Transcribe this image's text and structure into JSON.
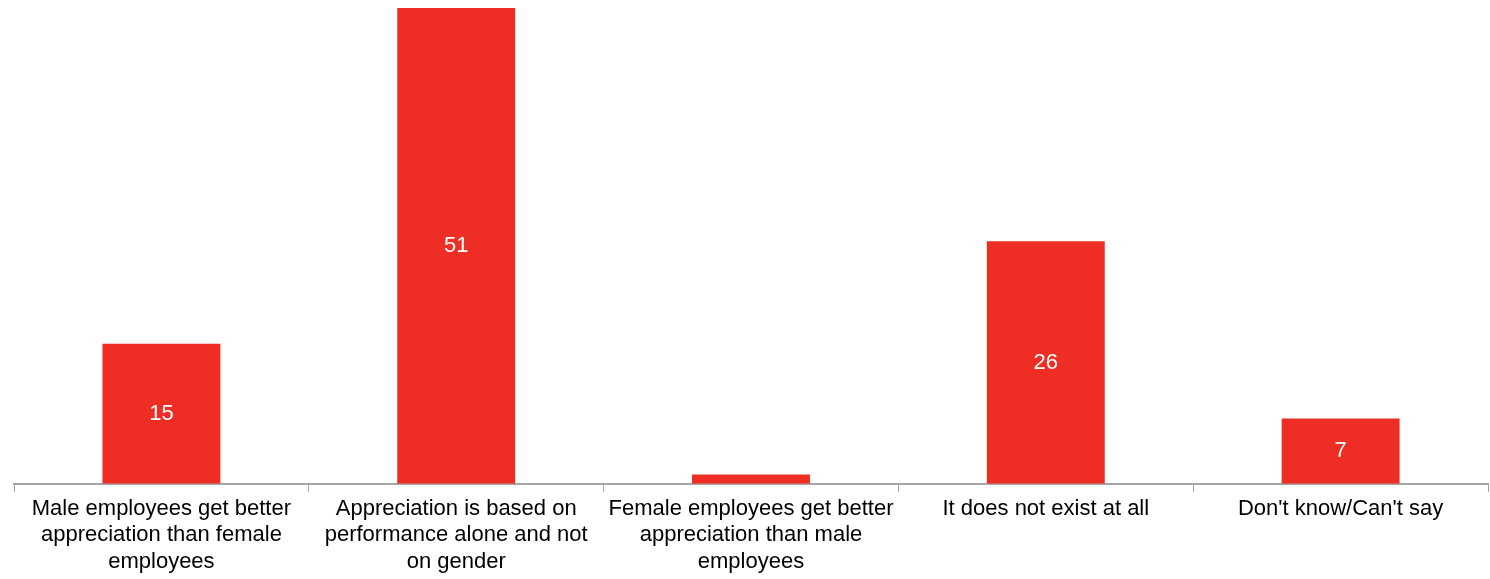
{
  "chart_data": {
    "type": "bar",
    "categories": [
      "Male employees get better appreciation than female employees",
      "Appreciation is based on performance alone and not on gender",
      "Female employees get better appreciation than male employees",
      "It does not exist at all",
      "Don't know/Can't say"
    ],
    "values": [
      15,
      51,
      1,
      26,
      7
    ],
    "value_labels": [
      "15",
      "51",
      null,
      "26",
      "7"
    ],
    "color": "#ee2e24",
    "ylim": [
      0,
      51
    ],
    "tick_labels": "x",
    "legend": false
  }
}
